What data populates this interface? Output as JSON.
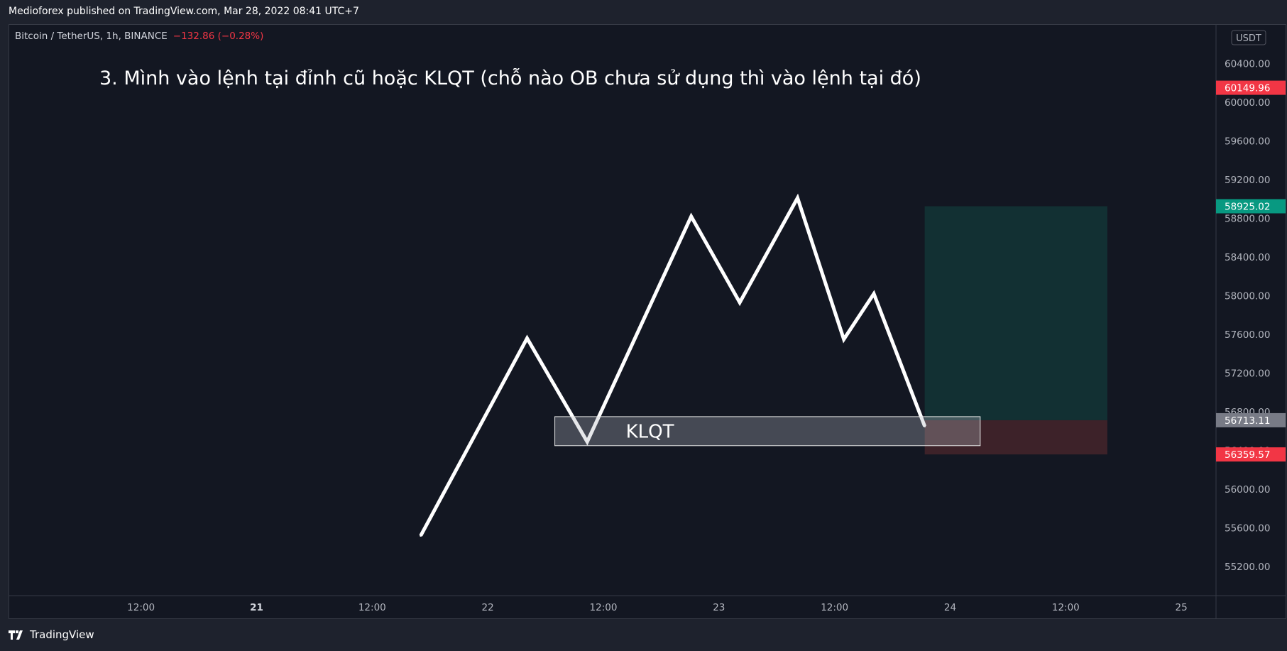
{
  "publisher_line": "Medioforex published on TradingView.com, Mar 28, 2022 08:41 UTC+7",
  "footer": {
    "brand": "TradingView",
    "icon": "tradingview-logo-icon"
  },
  "symbol": {
    "name": "Bitcoin / TetherUS, 1h, BINANCE",
    "change": "−132.86 (−0.28%)"
  },
  "colors": {
    "background": "#131722",
    "outer": "#1e222d",
    "change_negative": "#f23645",
    "label_red": "#f23645",
    "label_teal": "#089981",
    "label_gray": "#787b86",
    "profit_zone": "#123033",
    "loss_zone": "#3d2229"
  },
  "chart_data": {
    "type": "line",
    "title": "3. Mình vào lệnh tại đỉnh cũ hoặc KLQT (chỗ nào OB chưa sử dụng thì vào lệnh tại đó)",
    "currency": "USDT",
    "ylim": [
      54900,
      60800
    ],
    "xlim": [
      -0.57,
      4.65
    ],
    "y_ticks": [
      60400,
      60000,
      59600,
      59200,
      58800,
      58400,
      58000,
      57600,
      57200,
      56800,
      56400,
      56000,
      55600,
      55200
    ],
    "x_ticks": [
      {
        "x": 0,
        "label": "12:00",
        "bold": false
      },
      {
        "x": 0.5,
        "label": "21",
        "bold": true
      },
      {
        "x": 1,
        "label": "12:00",
        "bold": false
      },
      {
        "x": 1.5,
        "label": "22",
        "bold": false
      },
      {
        "x": 2,
        "label": "12:00",
        "bold": false
      },
      {
        "x": 2.5,
        "label": "23",
        "bold": false
      },
      {
        "x": 3,
        "label": "12:00",
        "bold": false
      },
      {
        "x": 3.5,
        "label": "24",
        "bold": false
      },
      {
        "x": 4,
        "label": "12:00",
        "bold": false
      },
      {
        "x": 4.5,
        "label": "25",
        "bold": false
      }
    ],
    "series": [
      {
        "points": [
          {
            "x": 1.21,
            "y": 55520
          },
          {
            "x": 1.67,
            "y": 57560
          },
          {
            "x": 1.93,
            "y": 56490
          },
          {
            "x": 2.38,
            "y": 58820
          },
          {
            "x": 2.59,
            "y": 57930
          },
          {
            "x": 2.84,
            "y": 59010
          },
          {
            "x": 3.04,
            "y": 57550
          },
          {
            "x": 3.17,
            "y": 58020
          },
          {
            "x": 3.39,
            "y": 56650
          }
        ]
      }
    ],
    "zone": {
      "label": "KLQT",
      "x_start": 1.79,
      "x_end": 3.63,
      "y_low": 56450,
      "y_high": 56750
    },
    "position": {
      "x_start": 3.39,
      "x_end": 4.18,
      "target": 58925.02,
      "entry": 56713.11,
      "stop": 56359.57
    },
    "price_labels": [
      {
        "value": 60149.96,
        "label": "60149.96",
        "color": "#f23645"
      },
      {
        "value": 58925.02,
        "label": "58925.02",
        "color": "#089981"
      },
      {
        "value": 56713.11,
        "label": "56713.11",
        "color": "#787b86"
      },
      {
        "value": 56359.57,
        "label": "56359.57",
        "color": "#f23645"
      }
    ]
  }
}
